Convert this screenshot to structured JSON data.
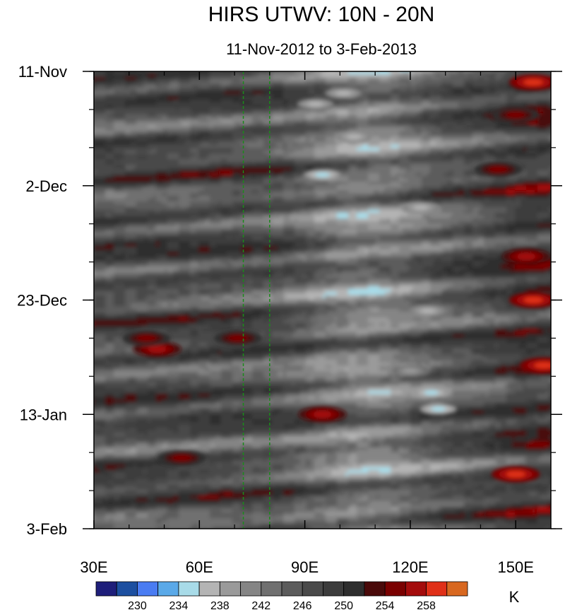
{
  "chart_data": {
    "type": "heatmap",
    "title": "HIRS UTWV: 10N - 20N",
    "subtitle": "11-Nov-2012 to 3-Feb-2013",
    "x_tick_labels": [
      "30E",
      "60E",
      "90E",
      "120E",
      "150E"
    ],
    "x_tick_values": [
      30,
      60,
      90,
      120,
      150
    ],
    "xlim": [
      30,
      160
    ],
    "y_tick_labels": [
      "11-Nov",
      "2-Dec",
      "23-Dec",
      "13-Jan",
      "3-Feb"
    ],
    "y_tick_values": [
      "2012-11-11",
      "2012-12-02",
      "2012-12-23",
      "2013-01-13",
      "2013-02-03"
    ],
    "ylim": [
      "2012-11-11",
      "2013-02-03"
    ],
    "y_direction": "time increases downward",
    "vertical_dashed_lines_lon": [
      72.5,
      80
    ],
    "vertical_dashed_line_color": "#1a8a1a",
    "colorbar": {
      "unit": "K",
      "levels": [
        228,
        230,
        232,
        234,
        236,
        238,
        240,
        242,
        244,
        246,
        248,
        250,
        252,
        254,
        256,
        258,
        260
      ],
      "tick_labels": [
        "230",
        "234",
        "238",
        "242",
        "246",
        "250",
        "254",
        "258"
      ],
      "tick_values": [
        230,
        234,
        238,
        242,
        246,
        250,
        254,
        258
      ],
      "colors": [
        "#1e1e7a",
        "#1c4fa0",
        "#4a7cf2",
        "#5aa9e8",
        "#a8dbe8",
        "#b4b4b4",
        "#9a9a9a",
        "#858585",
        "#707070",
        "#5c5c5c",
        "#4a4a4a",
        "#3c3c3c",
        "#2e2e2e",
        "#4a0a0a",
        "#7a0000",
        "#a40c0c",
        "#e03018",
        "#d86820"
      ]
    },
    "features": [
      {
        "lon": 101,
        "date": "2012-11-15",
        "value": 236
      },
      {
        "lon": 93,
        "date": "2012-11-17",
        "value": 236
      },
      {
        "lon": 104,
        "date": "2012-11-23",
        "value": 236
      },
      {
        "lon": 95,
        "date": "2012-11-30",
        "value": 235
      },
      {
        "lon": 123,
        "date": "2012-12-06",
        "value": 237
      },
      {
        "lon": 125,
        "date": "2012-12-25",
        "value": 237
      },
      {
        "lon": 120,
        "date": "2013-01-05",
        "value": 238
      },
      {
        "lon": 126,
        "date": "2013-01-09",
        "value": 235
      },
      {
        "lon": 128,
        "date": "2013-01-12",
        "value": 235
      },
      {
        "lon": 155,
        "date": "2012-11-13",
        "value": 258
      },
      {
        "lon": 150,
        "date": "2012-11-19",
        "value": 255
      },
      {
        "lon": 145,
        "date": "2012-11-29",
        "value": 254
      },
      {
        "lon": 153,
        "date": "2012-12-15",
        "value": 257
      },
      {
        "lon": 155,
        "date": "2012-12-23",
        "value": 258
      },
      {
        "lon": 158,
        "date": "2013-01-04",
        "value": 259
      },
      {
        "lon": 48,
        "date": "2013-01-01",
        "value": 256
      },
      {
        "lon": 45,
        "date": "2012-12-30",
        "value": 254
      },
      {
        "lon": 95,
        "date": "2013-01-13",
        "value": 257
      },
      {
        "lon": 55,
        "date": "2013-01-21",
        "value": 254
      },
      {
        "lon": 150,
        "date": "2013-01-24",
        "value": 258
      },
      {
        "lon": 71,
        "date": "2012-12-30",
        "value": 254
      }
    ]
  }
}
